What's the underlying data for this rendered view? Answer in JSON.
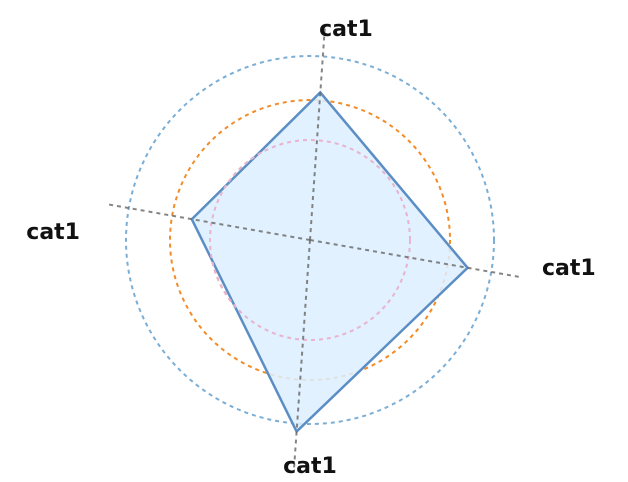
{
  "chart_data": {
    "type": "radar",
    "title": "",
    "categories": [
      "cat1",
      "cat1",
      "cat1",
      "cat1"
    ],
    "series": [
      {
        "values": [
          148,
          160,
          192,
          120
        ]
      }
    ],
    "radial_range": [
      0,
      184
    ],
    "rings": [
      {
        "value": 100,
        "color": "#e15f6e"
      },
      {
        "value": 140,
        "color": "#f28c28"
      },
      {
        "value": 184,
        "color": "#7aaed6"
      }
    ],
    "ring_style": "dashed",
    "colors": {
      "series_fill": "#ddeeff",
      "series_stroke": "#5b8ec4",
      "axis": "#666666",
      "inner_ring_overlay": "#e7b5cf"
    },
    "grid": true,
    "legend": "none"
  }
}
